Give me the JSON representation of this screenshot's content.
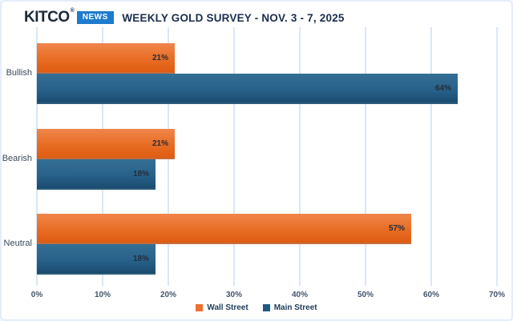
{
  "logo": {
    "brand": "KITCO",
    "reg": "®",
    "badge": "NEWS",
    "badge_color": "#1e7bcd"
  },
  "chart_data": {
    "type": "bar",
    "orientation": "horizontal",
    "title": "WEEKLY GOLD SURVEY - NOV. 3 - 7, 2025",
    "categories": [
      "Bullish",
      "Bearish",
      "Neutral"
    ],
    "series": [
      {
        "name": "Wall Street",
        "values": [
          21,
          21,
          57
        ],
        "color": "#ED7031"
      },
      {
        "name": "Main Street",
        "values": [
          64,
          18,
          18
        ],
        "color": "#1F5B80"
      }
    ],
    "value_suffix": "%",
    "xlabel": "",
    "ylabel": "",
    "xlim": [
      0,
      70
    ],
    "x_ticks": [
      "0%",
      "10%",
      "20%",
      "30%",
      "40%",
      "50%",
      "60%",
      "70%"
    ],
    "x_tick_values": [
      0,
      10,
      20,
      30,
      40,
      50,
      60,
      70
    ],
    "grid": "vertical",
    "legend_position": "bottom"
  },
  "colors": {
    "title": "#1c2d4f",
    "gridline": "#d9e7f6",
    "tick_text": "#44546b",
    "category_text": "#3a4a58",
    "bar_value_text": "#222e3a"
  }
}
